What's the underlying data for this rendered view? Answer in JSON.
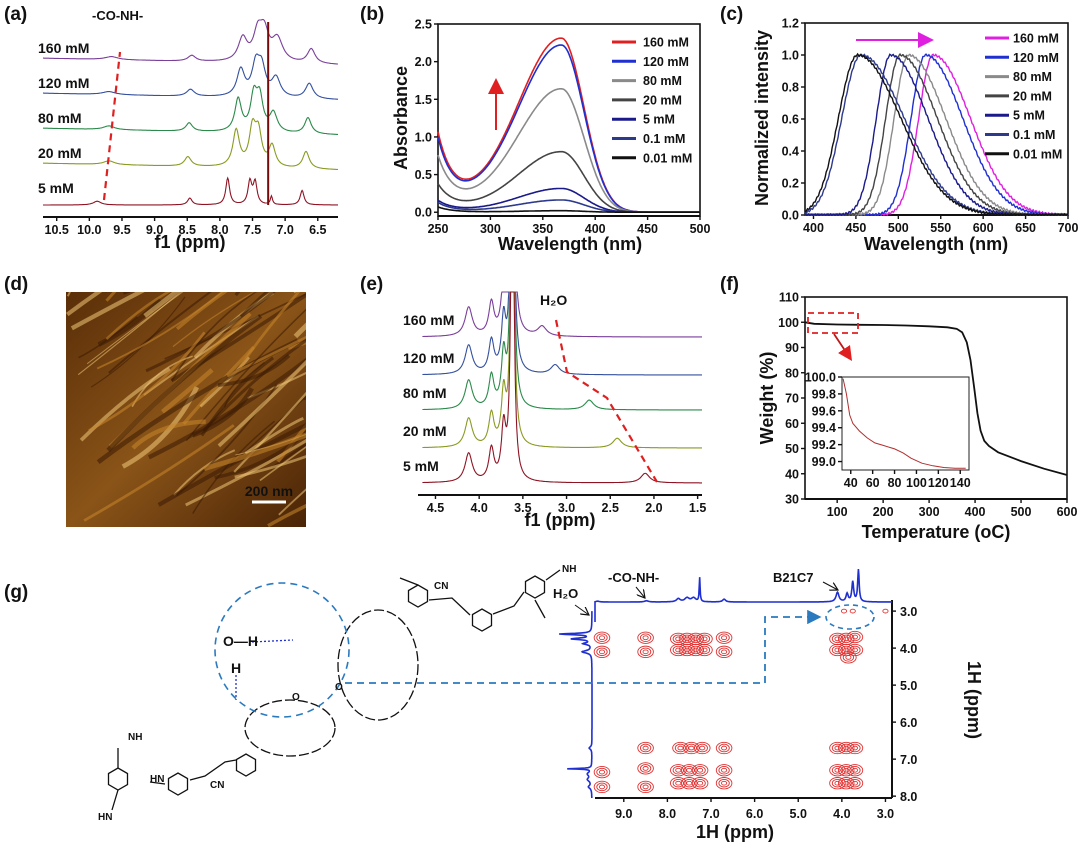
{
  "panel_labels": [
    "(a)",
    "(b)",
    "(c)",
    "(d)",
    "(e)",
    "(f)",
    "(g)"
  ],
  "chart_data": [
    {
      "id": "a",
      "type": "line",
      "xlabel": "f1 (ppm)",
      "xlim": [
        10.71,
        6.19
      ],
      "xticks": [
        "10.5",
        "10.0",
        "9.5",
        "9.0",
        "8.5",
        "8.0",
        "7.5",
        "7.0",
        "6.5"
      ],
      "annotation": "-CO-NH-",
      "solvent_line_ppm": 7.26,
      "series": [
        {
          "name": "160 mM",
          "color": "#7a3f9a",
          "peaks": [
            [
              9.66,
              0.08,
              0.12
            ],
            [
              8.43,
              0.15,
              0.07
            ],
            [
              7.65,
              0.6,
              0.08
            ],
            [
              7.42,
              0.7,
              0.08
            ],
            [
              7.32,
              0.7,
              0.08
            ],
            [
              7.12,
              0.6,
              0.1
            ],
            [
              6.6,
              0.38,
              0.07
            ]
          ]
        },
        {
          "name": "120 mM",
          "color": "#34509e",
          "peaks": [
            [
              9.7,
              0.08,
              0.12
            ],
            [
              8.45,
              0.18,
              0.07
            ],
            [
              7.68,
              0.7,
              0.07
            ],
            [
              7.45,
              0.78,
              0.07
            ],
            [
              7.36,
              0.7,
              0.07
            ],
            [
              7.14,
              0.5,
              0.08
            ],
            [
              6.63,
              0.4,
              0.07
            ]
          ]
        },
        {
          "name": "80 mM",
          "color": "#2b8a4a",
          "peaks": [
            [
              9.7,
              0.1,
              0.1
            ],
            [
              8.47,
              0.22,
              0.06
            ],
            [
              7.72,
              0.85,
              0.06
            ],
            [
              7.48,
              0.9,
              0.06
            ],
            [
              7.39,
              0.85,
              0.06
            ],
            [
              7.18,
              0.5,
              0.07
            ],
            [
              6.65,
              0.42,
              0.06
            ]
          ]
        },
        {
          "name": "20 mM",
          "color": "#8b9a22",
          "peaks": [
            [
              9.7,
              0.1,
              0.1
            ],
            [
              8.49,
              0.25,
              0.06
            ],
            [
              7.75,
              0.95,
              0.06
            ],
            [
              7.5,
              0.95,
              0.06
            ],
            [
              7.41,
              0.85,
              0.06
            ],
            [
              7.2,
              0.55,
              0.06
            ],
            [
              6.68,
              0.45,
              0.06
            ]
          ]
        },
        {
          "name": "5 mM",
          "color": "#8e1424",
          "peaks": [
            [
              9.88,
              0.1,
              0.07
            ],
            [
              8.46,
              0.18,
              0.04
            ],
            [
              7.88,
              0.7,
              0.035
            ],
            [
              7.54,
              0.6,
              0.035
            ],
            [
              7.46,
              0.58,
              0.035
            ],
            [
              7.21,
              0.22,
              0.02
            ],
            [
              6.74,
              0.38,
              0.035
            ]
          ]
        }
      ]
    },
    {
      "id": "b",
      "type": "line",
      "xlabel": "Wavelength (nm)",
      "ylabel": "Absorbance",
      "xlim": [
        250,
        500
      ],
      "ylim": [
        -0.05,
        2.5
      ],
      "xticks": [
        "250",
        "300",
        "350",
        "400",
        "450",
        "500"
      ],
      "yticks": [
        "0.0",
        "0.5",
        "1.0",
        "1.5",
        "2.0",
        "2.5"
      ],
      "legend": "top-right",
      "series": [
        {
          "name": "160 mM",
          "color": "#e02020",
          "peak_nm": 368,
          "peak": 2.27,
          "at_250": 1.07
        },
        {
          "name": "120 mM",
          "color": "#1f2fd0",
          "peak_nm": 368,
          "peak": 2.18,
          "at_250": 1.0
        },
        {
          "name": "80 mM",
          "color": "#8a8a8a",
          "peak_nm": 368,
          "peak": 1.61,
          "at_250": 0.76
        },
        {
          "name": "20 mM",
          "color": "#444444",
          "peak_nm": 368,
          "peak": 0.79,
          "at_250": 0.38
        },
        {
          "name": "5 mM",
          "color": "#1a1a8a",
          "peak_nm": 368,
          "peak": 0.31,
          "at_250": 0.16
        },
        {
          "name": "0.1 mM",
          "color": "#2d3a8c",
          "peak_nm": 368,
          "peak": 0.16,
          "at_250": 0.13
        },
        {
          "name": "0.01 mM",
          "color": "#111111",
          "peak_nm": 368,
          "peak": 0.02,
          "at_250": 0.07
        }
      ]
    },
    {
      "id": "c",
      "type": "line",
      "xlabel": "Wavelength (nm)",
      "ylabel": "Normalized intensity",
      "xlim": [
        390,
        700
      ],
      "ylim": [
        0,
        1.2
      ],
      "xticks": [
        "400",
        "450",
        "500",
        "550",
        "600",
        "650",
        "700"
      ],
      "yticks": [
        "0.0",
        "0.2",
        "0.4",
        "0.6",
        "0.8",
        "1.0",
        "1.2"
      ],
      "legend": "top-right",
      "series": [
        {
          "name": "160 mM",
          "color": "#e020e0",
          "peak_nm": 541
        },
        {
          "name": "120 mM",
          "color": "#2030d0",
          "peak_nm": 532
        },
        {
          "name": "80 mM",
          "color": "#8a8a8a",
          "peak_nm": 512
        },
        {
          "name": "20 mM",
          "color": "#444444",
          "peak_nm": 502
        },
        {
          "name": "5 mM",
          "color": "#1a1a8a",
          "peak_nm": 491
        },
        {
          "name": "0.1 mM",
          "color": "#2d3a8c",
          "peak_nm": 456
        },
        {
          "name": "0.01 mM",
          "color": "#111111",
          "peak_nm": 452
        }
      ]
    },
    {
      "id": "e",
      "type": "line",
      "xlabel": "f1 (ppm)",
      "xlim": [
        4.7,
        1.45
      ],
      "xticks": [
        "4.5",
        "4.0",
        "3.5",
        "3.0",
        "2.5",
        "2.0",
        "1.5"
      ],
      "annotation": "H₂O",
      "series": [
        {
          "name": "160 mM",
          "color": "#7a3f9a",
          "water_ppm": 3.28
        },
        {
          "name": "120 mM",
          "color": "#34509e",
          "water_ppm": 3.13
        },
        {
          "name": "80 mM",
          "color": "#2b8a4a",
          "water_ppm": 2.74
        },
        {
          "name": "20 mM",
          "color": "#8b9a22",
          "water_ppm": 2.42
        },
        {
          "name": "5 mM",
          "color": "#8e1424",
          "water_ppm": 2.1
        }
      ]
    },
    {
      "id": "f",
      "type": "line",
      "xlabel": "Temperature (oC)",
      "ylabel": "Weight (%)",
      "xlim": [
        30,
        600
      ],
      "ylim": [
        30,
        110
      ],
      "xticks": [
        "100",
        "200",
        "300",
        "400",
        "500",
        "600"
      ],
      "yticks": [
        "30",
        "40",
        "50",
        "60",
        "70",
        "80",
        "90",
        "100",
        "110"
      ],
      "x": [
        30,
        50,
        100,
        150,
        200,
        250,
        300,
        340,
        360,
        372,
        382,
        390,
        398,
        405,
        412,
        420,
        430,
        450,
        500,
        550,
        600
      ],
      "y": [
        100,
        99.4,
        99.1,
        99.0,
        98.9,
        98.7,
        98.4,
        98.0,
        97.4,
        96,
        92,
        85,
        74,
        64,
        57,
        53,
        51,
        48.5,
        45,
        42,
        39.5
      ],
      "inset": {
        "xlim": [
          32,
          148
        ],
        "ylim": [
          98.9,
          100.0
        ],
        "xticks": [
          "40",
          "60",
          "80",
          "100",
          "120",
          "140"
        ],
        "yticks": [
          "99.0",
          "99.2",
          "99.4",
          "99.6",
          "99.8",
          "100.0"
        ],
        "x": [
          33,
          36,
          39,
          42,
          48,
          55,
          62,
          70,
          80,
          88,
          95,
          105,
          115,
          125,
          135,
          145
        ],
        "y": [
          99.98,
          99.8,
          99.55,
          99.45,
          99.36,
          99.28,
          99.22,
          99.19,
          99.15,
          99.1,
          99.04,
          98.98,
          98.95,
          98.93,
          98.92,
          98.92
        ]
      }
    },
    {
      "id": "g",
      "type": "heatmap",
      "xlabel": "1H (ppm)",
      "ylabel": "1H (ppm)",
      "xlim": [
        9.66,
        2.85
      ],
      "ylim": [
        2.7,
        8.05
      ],
      "xticks": [
        "9.0",
        "8.0",
        "7.0",
        "6.0",
        "5.0",
        "4.0",
        "3.0"
      ],
      "yticks": [
        "3.0",
        "4.0",
        "5.0",
        "6.0",
        "7.0",
        "8.0"
      ],
      "annotations": [
        "H₂O",
        "-CO-NH-",
        "B21C7"
      ],
      "cross_peaks": [
        [
          9.5,
          3.72
        ],
        [
          9.5,
          4.1
        ],
        [
          8.5,
          3.72
        ],
        [
          8.5,
          4.1
        ],
        [
          7.75,
          3.75
        ],
        [
          7.55,
          3.75
        ],
        [
          7.35,
          3.75
        ],
        [
          7.15,
          3.75
        ],
        [
          7.75,
          4.05
        ],
        [
          7.55,
          4.05
        ],
        [
          7.35,
          4.05
        ],
        [
          7.15,
          4.05
        ],
        [
          6.7,
          3.72
        ],
        [
          6.7,
          4.1
        ],
        [
          4.1,
          3.75
        ],
        [
          3.9,
          3.75
        ],
        [
          3.7,
          3.7
        ],
        [
          4.1,
          4.05
        ],
        [
          3.9,
          4.05
        ],
        [
          3.7,
          4.05
        ],
        [
          3.85,
          4.25
        ],
        [
          3.95,
          3.0
        ],
        [
          3.75,
          3.0
        ],
        [
          3.0,
          3.0
        ],
        [
          8.5,
          6.7
        ],
        [
          7.7,
          6.7
        ],
        [
          7.45,
          6.7
        ],
        [
          7.2,
          6.7
        ],
        [
          6.7,
          6.7
        ],
        [
          4.1,
          6.7
        ],
        [
          3.9,
          6.7
        ],
        [
          3.7,
          6.7
        ],
        [
          9.5,
          7.35
        ],
        [
          9.5,
          7.75
        ],
        [
          8.5,
          7.25
        ],
        [
          8.5,
          7.75
        ],
        [
          7.75,
          7.3
        ],
        [
          7.5,
          7.3
        ],
        [
          7.25,
          7.3
        ],
        [
          7.75,
          7.65
        ],
        [
          7.5,
          7.65
        ],
        [
          7.25,
          7.65
        ],
        [
          6.7,
          7.3
        ],
        [
          6.7,
          7.65
        ],
        [
          4.1,
          7.3
        ],
        [
          3.9,
          7.3
        ],
        [
          3.7,
          7.3
        ],
        [
          4.1,
          7.65
        ],
        [
          3.9,
          7.65
        ],
        [
          3.7,
          7.65
        ]
      ]
    }
  ],
  "afm": {
    "scale_bar": "200 nm"
  },
  "molecule": {
    "hydroxyl": "O—H",
    "hydrogen": "H",
    "amide_nh": "NH",
    "amide_hn": "HN",
    "nitrile": "CN",
    "oxygen": "O"
  }
}
